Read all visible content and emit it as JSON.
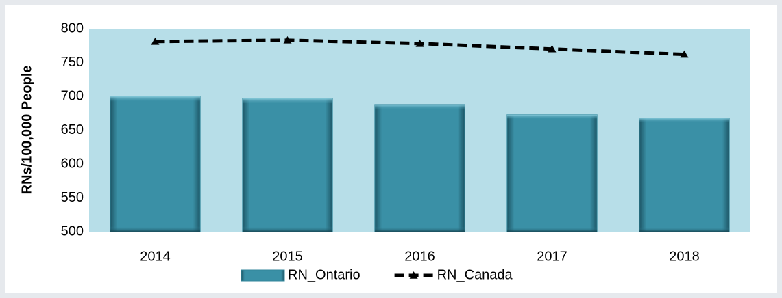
{
  "chart_data": {
    "type": "bar",
    "y_label": "RNs/100,000 People",
    "categories": [
      "2014",
      "2015",
      "2016",
      "2017",
      "2018"
    ],
    "series": [
      {
        "name": "RN_Ontario",
        "type": "bar",
        "color": "#31869b",
        "values": [
          700,
          697,
          688,
          673,
          668
        ]
      },
      {
        "name": "RN_Canada",
        "type": "line",
        "color": "#000000",
        "values": [
          781,
          783,
          778,
          770,
          762
        ]
      }
    ],
    "ylim": [
      500,
      800
    ],
    "yticks": [
      500,
      550,
      600,
      650,
      700,
      750,
      800
    ],
    "plot_background": "#b7dee8",
    "legend": "bottom"
  }
}
